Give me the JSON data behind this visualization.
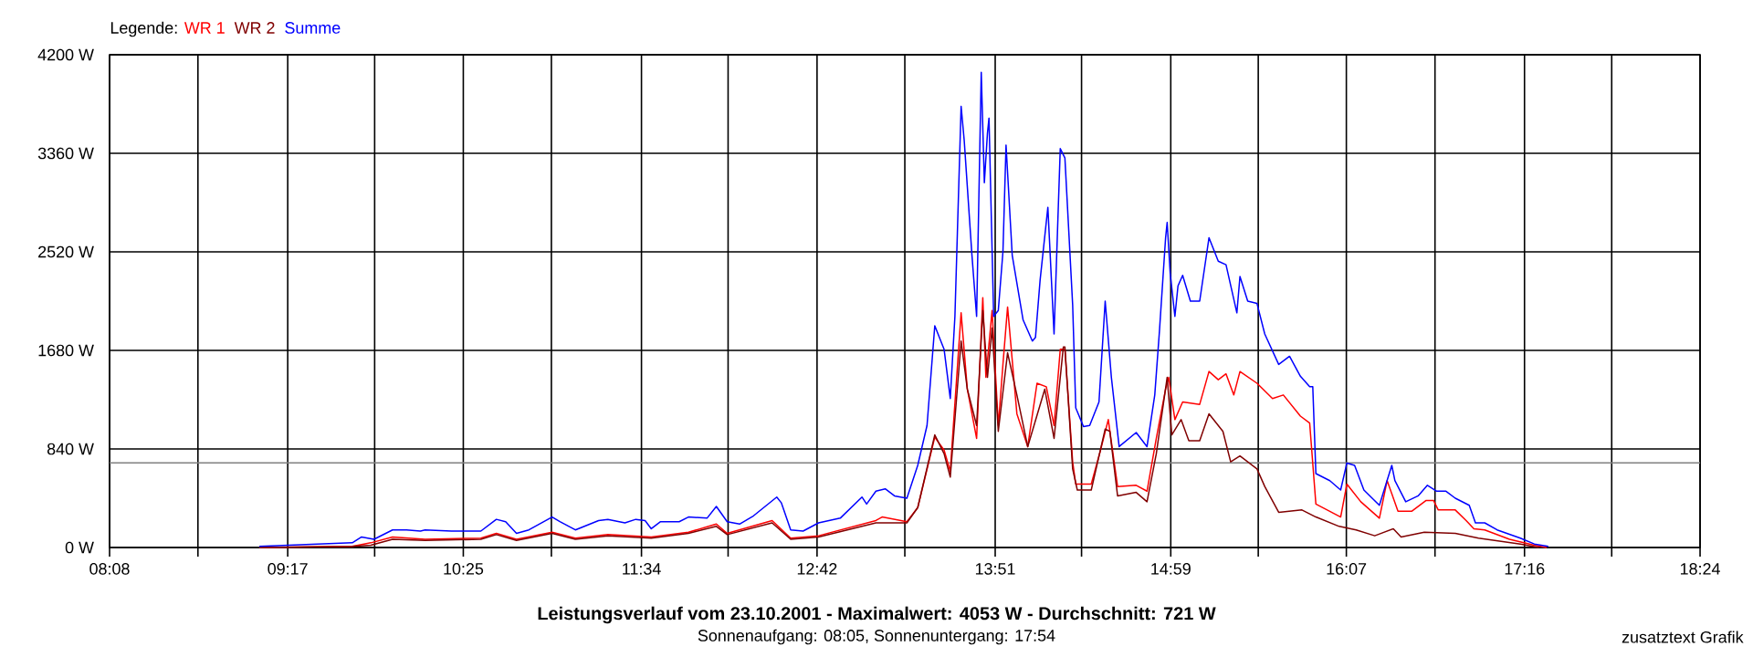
{
  "chart_data": {
    "type": "line",
    "title": "Leistungsverlauf vom 23.10.2001 - Maximalwert: 4053 W - Durchschnitt: 721 W",
    "subtitle": "Sonnenaufgang: 08:05, Sonnenuntergang: 17:54",
    "annotations": [
      "zusatztext Grafik"
    ],
    "legend_title": "Legende:",
    "legend": "top left",
    "grid": true,
    "marker": "none",
    "line_style": "solid",
    "xlim": [
      8.1333,
      18.4
    ],
    "xticks": [
      {
        "value": 8.1333,
        "label": "08:08"
      },
      {
        "value": 8.7037,
        "label": null
      },
      {
        "value": 9.2833,
        "label": "09:17"
      },
      {
        "value": 9.8444,
        "label": null
      },
      {
        "value": 10.4167,
        "label": "10:25"
      },
      {
        "value": 10.9852,
        "label": null
      },
      {
        "value": 11.5667,
        "label": "11:34"
      },
      {
        "value": 12.1259,
        "label": null
      },
      {
        "value": 12.7,
        "label": "12:42"
      },
      {
        "value": 13.2667,
        "label": null
      },
      {
        "value": 13.85,
        "label": "13:51"
      },
      {
        "value": 14.4074,
        "label": null
      },
      {
        "value": 14.9833,
        "label": "14:59"
      },
      {
        "value": 15.5481,
        "label": null
      },
      {
        "value": 16.1167,
        "label": "16:07"
      },
      {
        "value": 16.6889,
        "label": null
      },
      {
        "value": 17.2667,
        "label": "17:16"
      },
      {
        "value": 17.8296,
        "label": null
      },
      {
        "value": 18.4,
        "label": "18:24"
      }
    ],
    "ylim": [
      0,
      4200
    ],
    "yticks": [
      {
        "value": 0,
        "label": "0 W"
      },
      {
        "value": 840,
        "label": "840 W"
      },
      {
        "value": 1680,
        "label": "1680 W"
      },
      {
        "value": 2520,
        "label": "2520 W"
      },
      {
        "value": 3360,
        "label": "3360 W"
      },
      {
        "value": 4200,
        "label": "4200 W"
      }
    ],
    "ref_lines": [
      {
        "axis": "y",
        "value": 721,
        "color": "#808080"
      }
    ],
    "series": [
      {
        "name": "WR 1",
        "color": "#ff0000",
        "x": [
          9.1,
          9.7,
          9.82,
          9.96,
          10.17,
          10.53,
          10.63,
          10.76,
          10.99,
          11.14,
          11.35,
          11.63,
          11.87,
          12.05,
          12.12,
          12.41,
          12.53,
          12.71,
          13.08,
          13.12,
          13.28,
          13.35,
          13.46,
          13.52,
          13.56,
          13.63,
          13.67,
          13.73,
          13.77,
          13.79,
          13.83,
          13.87,
          13.9,
          13.93,
          13.99,
          14.06,
          14.12,
          14.18,
          14.23,
          14.27,
          14.3,
          14.35,
          14.37,
          14.47,
          14.53,
          14.58,
          14.64,
          14.76,
          14.83,
          14.89,
          14.95,
          14.97,
          15.01,
          15.06,
          15.17,
          15.23,
          15.29,
          15.34,
          15.39,
          15.43,
          15.54,
          15.64,
          15.71,
          15.82,
          15.88,
          15.92,
          16.08,
          16.12,
          16.21,
          16.33,
          16.38,
          16.45,
          16.54,
          16.63,
          16.68,
          16.71,
          16.82,
          16.89,
          16.94,
          17.01,
          17.17,
          17.33,
          17.41
        ],
        "values": [
          0,
          10,
          40,
          90,
          70,
          80,
          120,
          70,
          130,
          80,
          110,
          90,
          130,
          200,
          120,
          230,
          80,
          100,
          230,
          260,
          220,
          340,
          940,
          830,
          650,
          2000,
          1350,
          930,
          2130,
          1450,
          2020,
          1040,
          1560,
          2050,
          1140,
          860,
          1400,
          1370,
          1040,
          1690,
          1690,
          730,
          540,
          540,
          830,
          1090,
          520,
          530,
          480,
          930,
          1350,
          1450,
          1090,
          1240,
          1220,
          1500,
          1430,
          1480,
          1300,
          1500,
          1400,
          1270,
          1300,
          1120,
          1060,
          370,
          260,
          540,
          390,
          250,
          570,
          310,
          310,
          400,
          400,
          320,
          320,
          230,
          160,
          150,
          70,
          20,
          0
        ]
      },
      {
        "name": "WR 2",
        "color": "#800000",
        "x": [
          9.1,
          9.7,
          9.82,
          9.96,
          10.17,
          10.53,
          10.63,
          10.76,
          10.99,
          11.14,
          11.35,
          11.63,
          11.87,
          12.05,
          12.12,
          12.41,
          12.53,
          12.71,
          13.08,
          13.28,
          13.35,
          13.46,
          13.52,
          13.56,
          13.63,
          13.67,
          13.73,
          13.77,
          13.8,
          13.83,
          13.87,
          13.93,
          13.99,
          14.06,
          14.17,
          14.23,
          14.29,
          14.3,
          14.35,
          14.38,
          14.47,
          14.56,
          14.59,
          14.64,
          14.76,
          14.83,
          14.89,
          14.96,
          14.99,
          15.05,
          15.1,
          15.17,
          15.23,
          15.32,
          15.37,
          15.43,
          15.54,
          15.59,
          15.68,
          15.83,
          15.92,
          16.07,
          16.18,
          16.3,
          16.42,
          16.47,
          16.62,
          16.82,
          16.97,
          17.24,
          17.36
        ],
        "values": [
          0,
          10,
          20,
          70,
          60,
          70,
          110,
          60,
          120,
          70,
          100,
          80,
          120,
          180,
          110,
          210,
          70,
          90,
          210,
          210,
          340,
          960,
          800,
          600,
          1760,
          1350,
          1040,
          2020,
          1450,
          1870,
          990,
          1660,
          1300,
          860,
          1350,
          930,
          1710,
          1710,
          670,
          490,
          490,
          1010,
          990,
          440,
          470,
          390,
          800,
          1450,
          960,
          1090,
          910,
          910,
          1140,
          990,
          730,
          780,
          670,
          520,
          300,
          320,
          260,
          180,
          150,
          100,
          160,
          90,
          130,
          120,
          80,
          30,
          0
        ]
      },
      {
        "name": "Summe",
        "color": "#0000ff",
        "x": [
          9.1,
          9.7,
          9.76,
          9.84,
          9.96,
          10.05,
          10.14,
          10.17,
          10.34,
          10.53,
          10.63,
          10.69,
          10.76,
          10.84,
          10.99,
          11.04,
          11.14,
          11.29,
          11.35,
          11.46,
          11.53,
          11.59,
          11.63,
          11.69,
          11.81,
          11.87,
          11.99,
          12.05,
          12.12,
          12.2,
          12.29,
          12.44,
          12.47,
          12.53,
          12.61,
          12.71,
          12.85,
          12.99,
          13.02,
          13.08,
          13.14,
          13.2,
          13.28,
          13.35,
          13.41,
          13.46,
          13.52,
          13.56,
          13.59,
          13.63,
          13.65,
          13.7,
          13.73,
          13.76,
          13.78,
          13.8,
          13.81,
          13.84,
          13.87,
          13.9,
          13.92,
          13.96,
          14.03,
          14.09,
          14.11,
          14.14,
          14.19,
          14.23,
          14.27,
          14.3,
          14.35,
          14.37,
          14.42,
          14.46,
          14.52,
          14.56,
          14.6,
          14.65,
          14.76,
          14.83,
          14.88,
          14.91,
          14.95,
          14.96,
          14.98,
          15.01,
          15.03,
          15.06,
          15.11,
          15.17,
          15.23,
          15.29,
          15.34,
          15.41,
          15.43,
          15.48,
          15.54,
          15.59,
          15.68,
          15.75,
          15.82,
          15.88,
          15.9,
          15.92,
          16.01,
          16.08,
          16.12,
          16.17,
          16.23,
          16.33,
          16.41,
          16.43,
          16.5,
          16.58,
          16.64,
          16.7,
          16.76,
          16.82,
          16.91,
          16.95,
          17.01,
          17.09,
          17.24,
          17.33,
          17.42
        ],
        "values": [
          10,
          40,
          90,
          70,
          150,
          150,
          140,
          150,
          140,
          140,
          240,
          220,
          120,
          150,
          260,
          220,
          150,
          230,
          240,
          210,
          240,
          230,
          160,
          220,
          220,
          260,
          250,
          350,
          220,
          200,
          270,
          430,
          380,
          150,
          140,
          210,
          250,
          430,
          370,
          480,
          500,
          440,
          420,
          700,
          1040,
          1890,
          1690,
          1270,
          1970,
          3760,
          3470,
          2490,
          1970,
          4050,
          3110,
          3530,
          3660,
          1970,
          2020,
          2520,
          3430,
          2490,
          1940,
          1760,
          1790,
          2280,
          2900,
          1820,
          3400,
          3320,
          2070,
          1190,
          1030,
          1040,
          1240,
          2100,
          1450,
          860,
          980,
          860,
          1300,
          1840,
          2640,
          2770,
          2330,
          1970,
          2230,
          2320,
          2100,
          2100,
          2640,
          2440,
          2410,
          2000,
          2310,
          2100,
          2080,
          1820,
          1560,
          1630,
          1460,
          1370,
          1370,
          630,
          570,
          490,
          720,
          700,
          490,
          360,
          700,
          570,
          390,
          440,
          530,
          480,
          480,
          420,
          360,
          210,
          210,
          150,
          80,
          30,
          10
        ]
      }
    ]
  }
}
